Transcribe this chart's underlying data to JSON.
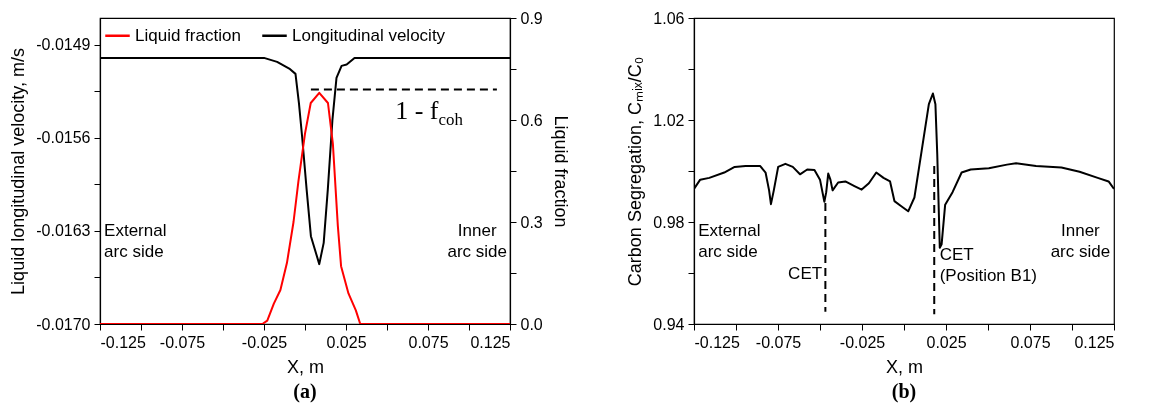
{
  "chart_data": [
    {
      "type": "line",
      "title": "(a)",
      "xlabel": "X, m",
      "ylabel": "Liquid longitudinal velocity, m/s",
      "y2label": "Liquid fraction",
      "xlim": [
        -0.125,
        0.125
      ],
      "xticks": [
        -0.125,
        {
          "value": -0.1,
          "label": null
        },
        -0.075,
        {
          "value": -0.05,
          "label": null
        },
        -0.025,
        {
          "value": 0,
          "label": null
        },
        0.025,
        {
          "value": 0.05,
          "label": null
        },
        0.075,
        {
          "value": 0.1,
          "label": null
        },
        0.125
      ],
      "ylim": [
        -0.017,
        -0.0147
      ],
      "yticks": [
        {
          "value": -0.017,
          "label": "-0.0170"
        },
        {
          "value": -0.01665,
          "label": null
        },
        -0.0163,
        {
          "value": -0.01595,
          "label": null
        },
        -0.0156,
        {
          "value": -0.01525,
          "label": null
        },
        -0.0149
      ],
      "y2lim": [
        0,
        0.9
      ],
      "y2ticks": [
        {
          "value": 0,
          "label": "0.0"
        },
        {
          "value": 0.15,
          "label": null
        },
        0.3,
        {
          "value": 0.45,
          "label": null
        },
        0.6,
        {
          "value": 0.75,
          "label": null
        },
        0.9
      ],
      "legend": "top",
      "grid": false,
      "series": [
        {
          "name": "Liquid fraction",
          "color": "#ff0000",
          "axis": "y2",
          "x": [
            -0.125,
            -0.026,
            -0.023,
            -0.019,
            -0.015,
            -0.011,
            -0.007,
            -0.004,
            0.0,
            0.0035,
            0.0087,
            0.014,
            0.017,
            0.02,
            0.022,
            0.0265,
            0.031,
            0.0337,
            0.035,
            0.125
          ],
          "values": [
            0,
            0,
            0.01,
            0.06,
            0.1,
            0.18,
            0.3,
            0.42,
            0.56,
            0.65,
            0.68,
            0.65,
            0.53,
            0.29,
            0.17,
            0.09,
            0.04,
            0.0,
            0,
            0
          ]
        },
        {
          "name": "Longitudinal velocity",
          "color": "#000000",
          "x": [
            -0.125,
            -0.025,
            -0.017,
            -0.0096,
            -0.0058,
            -0.0037,
            -0.0017,
            0.001,
            0.0036,
            0.0087,
            0.0114,
            0.0139,
            0.0167,
            0.0192,
            0.0223,
            0.0254,
            0.0302,
            0.125
          ],
          "values": [
            -0.015,
            -0.015,
            -0.01503,
            -0.01508,
            -0.01512,
            -0.01534,
            -0.0156,
            -0.01599,
            -0.01634,
            -0.01655,
            -0.01639,
            -0.01599,
            -0.01547,
            -0.01515,
            -0.01506,
            -0.01505,
            -0.015,
            -0.015
          ]
        },
        {
          "color": "#000000",
          "axis": "y2",
          "line_style": "dashed",
          "x": [
            0.0036,
            0.117
          ],
          "values": [
            0.69,
            0.69
          ]
        }
      ],
      "annotations": [
        "External\narc side",
        "Inner\narc side",
        "1 - f$_{coh}$"
      ]
    },
    {
      "type": "line",
      "title": "(b)",
      "xlabel": "X, m",
      "ylabel": "Carbon Segregation, Cₘᵢₓ/C₀",
      "xlim": [
        -0.125,
        0.125
      ],
      "xticks": [
        -0.125,
        {
          "value": -0.1,
          "label": null
        },
        -0.075,
        {
          "value": -0.05,
          "label": null
        },
        -0.025,
        {
          "value": 0,
          "label": null
        },
        0.025,
        {
          "value": 0.05,
          "label": null
        },
        0.075,
        {
          "value": 0.1,
          "label": null
        },
        0.125
      ],
      "ylim": [
        0.94,
        1.06
      ],
      "yticks": [
        0.94,
        {
          "value": 0.96,
          "label": null
        },
        0.98,
        {
          "value": 1.0,
          "label": null
        },
        1.02,
        {
          "value": 1.04,
          "label": null
        },
        1.06
      ],
      "grid": false,
      "series": [
        {
          "color": "#000000",
          "x": [
            -0.125,
            -0.1213,
            -0.1159,
            -0.107,
            -0.1008,
            -0.0943,
            -0.0857,
            -0.0824,
            -0.0803,
            -0.0792,
            -0.0775,
            -0.0749,
            -0.0706,
            -0.0662,
            -0.0619,
            -0.0576,
            -0.0533,
            -0.05,
            -0.0474,
            -0.0463,
            -0.0451,
            -0.0438,
            -0.0425,
            -0.0392,
            -0.0349,
            -0.0295,
            -0.0252,
            -0.0209,
            -0.0165,
            -0.0122,
            -0.0083,
            -0.0057,
            -0.0014,
            0.0025,
            0.0062,
            0.0105,
            0.0148,
            0.0172,
            0.0187,
            0.0198,
            0.0213,
            0.0224,
            0.0245,
            0.0289,
            0.0343,
            0.0397,
            0.0505,
            0.0613,
            0.0667,
            0.0786,
            0.0937,
            0.1045,
            0.1153,
            0.1218,
            0.125
          ],
          "values": [
            0.993,
            0.9966,
            0.9973,
            0.9994,
            1.0016,
            1.002,
            1.002,
            0.9994,
            0.9924,
            0.987,
            0.9924,
            1.0016,
            1.0028,
            1.0016,
            0.9987,
            1.0006,
            1.0004,
            0.9966,
            0.9879,
            0.9917,
            0.999,
            0.9966,
            0.9924,
            0.9955,
            0.9959,
            0.9941,
            0.9927,
            0.9952,
            0.9994,
            0.9973,
            0.9959,
            0.9882,
            0.9861,
            0.9842,
            0.9896,
            1.0079,
            1.0262,
            1.0304,
            1.0262,
            1.0065,
            0.9699,
            0.9713,
            0.9868,
            0.9917,
            0.9994,
            1.0006,
            1.0011,
            1.0025,
            1.003,
            1.002,
            1.0014,
            0.9997,
            0.9973,
            0.9959,
            0.993
          ]
        },
        {
          "color": "#000000",
          "line_style": "dashed",
          "x": [
            -0.0468,
            -0.0468
          ],
          "values": [
            0.9875,
            0.9448
          ]
        },
        {
          "color": "#000000",
          "line_style": "dashed",
          "x": [
            0.018,
            0.018
          ],
          "values": [
            1.002,
            0.9438
          ]
        }
      ],
      "annotations": [
        "External\narc side",
        "Inner\narc side",
        "CET",
        "CET\n(Position B1)"
      ]
    }
  ]
}
